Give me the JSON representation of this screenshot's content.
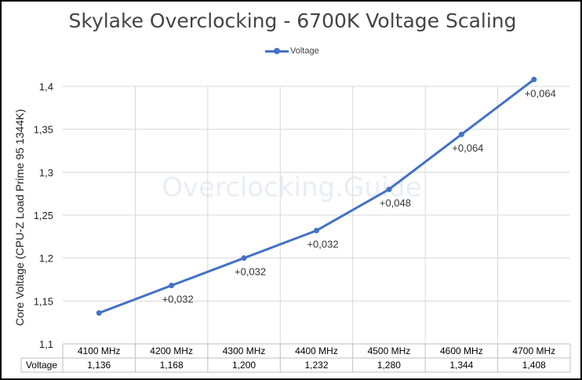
{
  "chart_data": {
    "type": "line",
    "title": "Skylake Overclocking - 6700K Voltage Scaling",
    "ylabel": "Core Voltage (CPU-Z Load Prime 95 1344K)",
    "xlabel": "",
    "categories": [
      "4100 MHz",
      "4200 MHz",
      "4300 MHz",
      "4400 MHz",
      "4500 MHz",
      "4600 MHz",
      "4700 MHz"
    ],
    "series": [
      {
        "name": "Voltage",
        "values": [
          1.136,
          1.168,
          1.2,
          1.232,
          1.28,
          1.344,
          1.408
        ],
        "color": "#4472c4"
      }
    ],
    "data_labels": [
      "",
      "+0,032",
      "+0,032",
      "+0,032",
      "+0,048",
      "+0,064",
      "+0,064"
    ],
    "ylim": [
      1.1,
      1.4
    ],
    "yticks": [
      "1,1",
      "1,15",
      "1,2",
      "1,25",
      "1,3",
      "1,35",
      "1,4"
    ],
    "grid": true,
    "legend_position": "top",
    "watermark": "Overclocking.Guide",
    "data_table": {
      "row_label": "Voltage",
      "values": [
        "1,136",
        "1,168",
        "1,200",
        "1,232",
        "1,280",
        "1,344",
        "1,408"
      ]
    }
  }
}
